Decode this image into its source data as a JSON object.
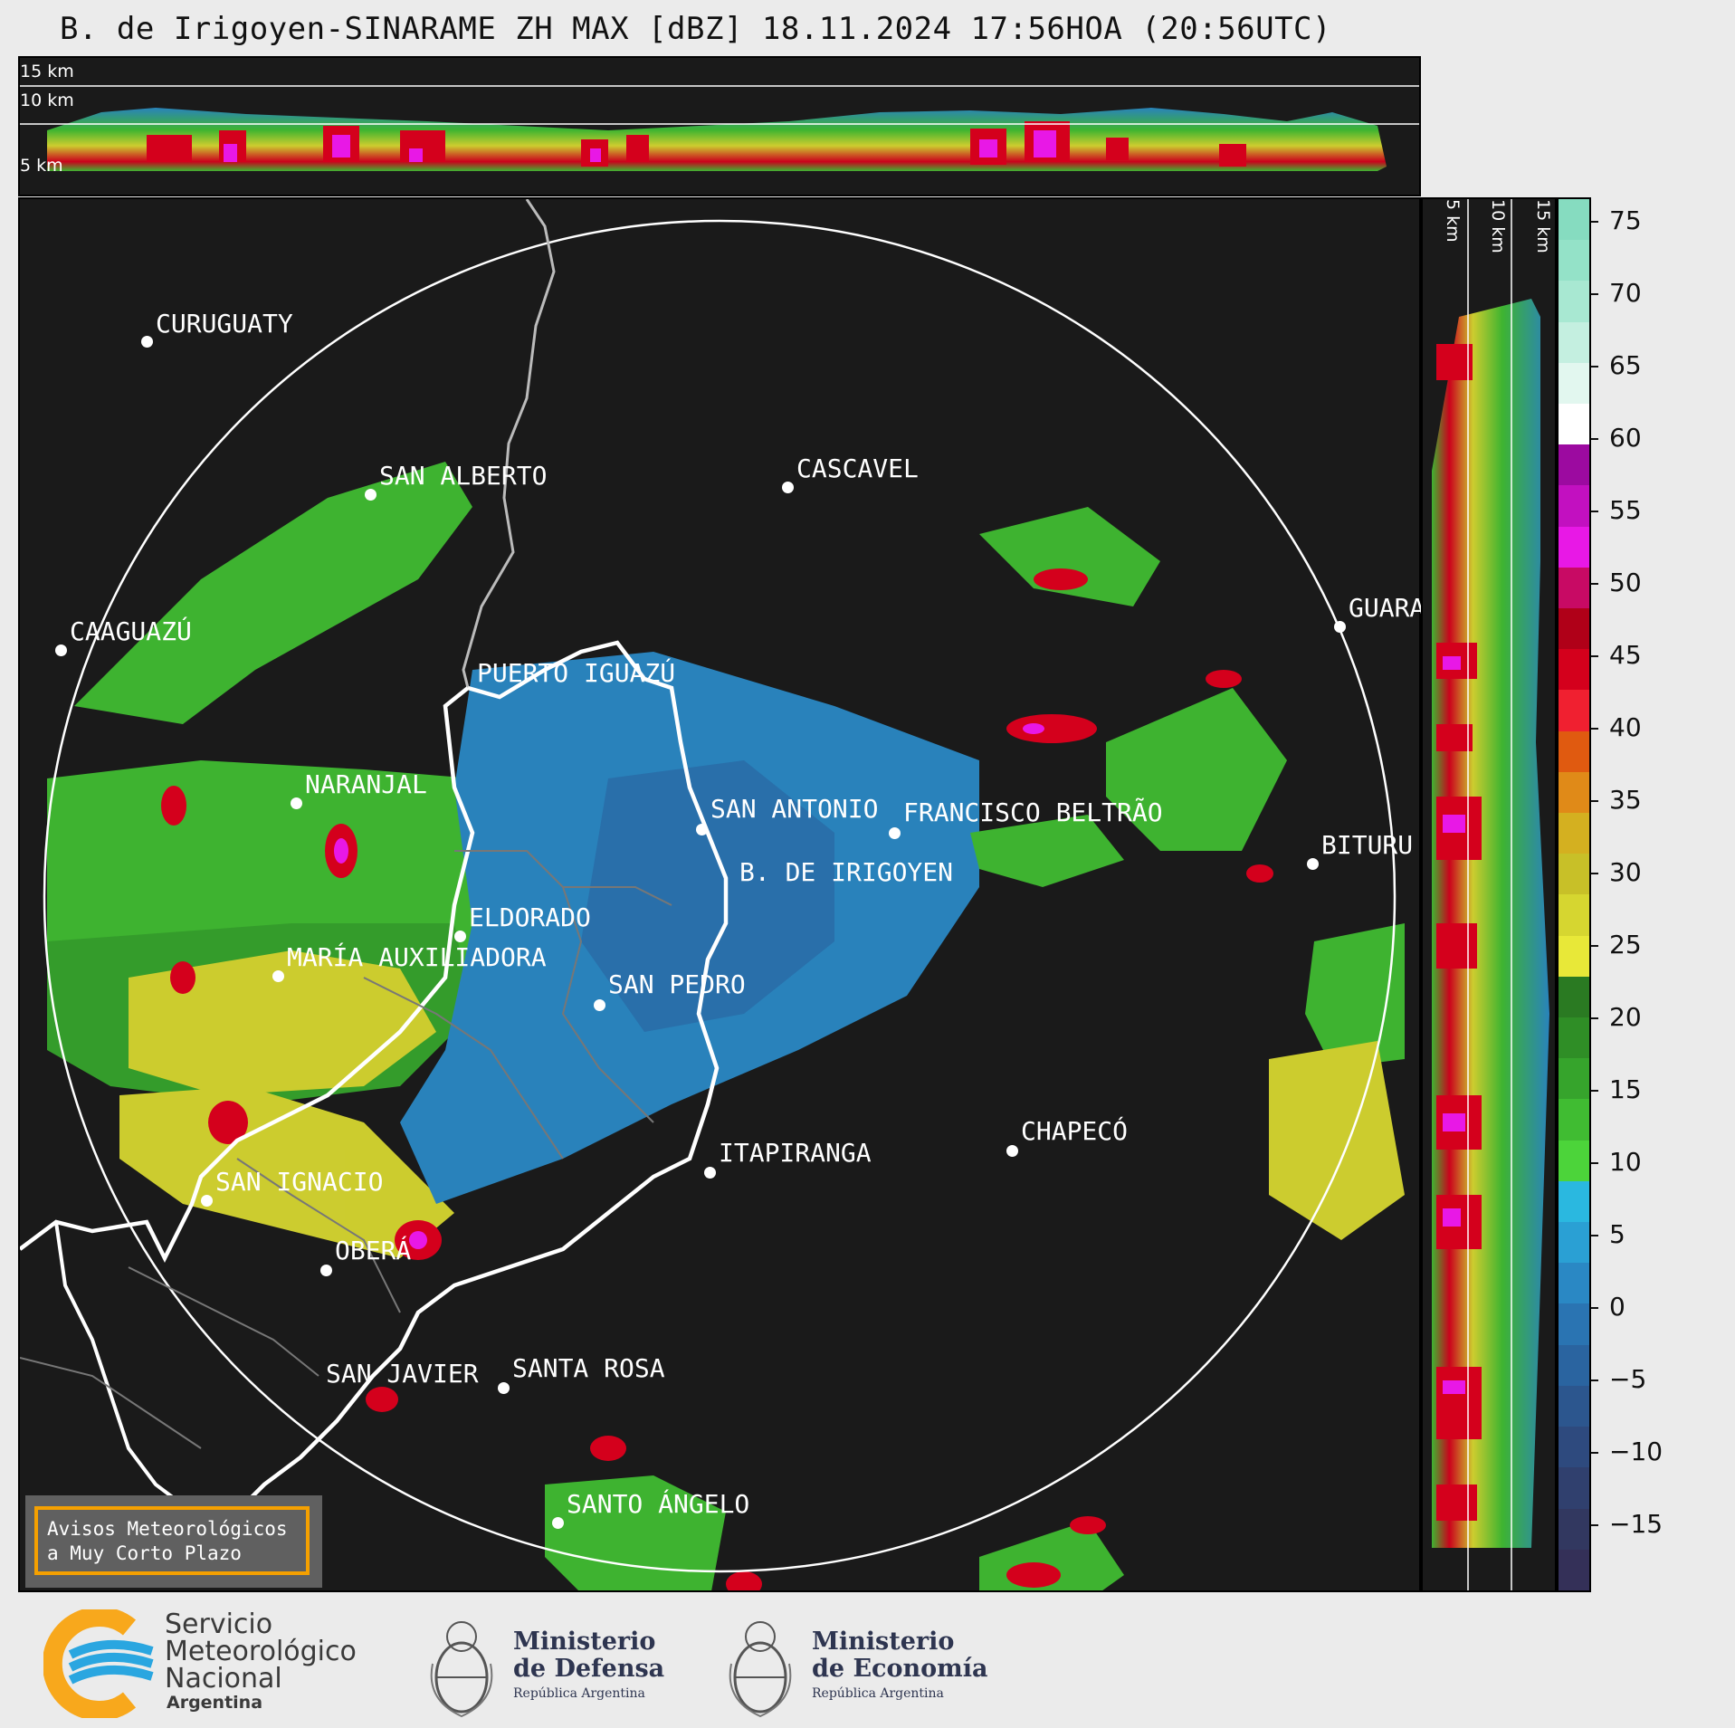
{
  "title": "B. de Irigoyen-SINARAME ZH MAX [dBZ] 18.11.2024 17:56HOA (20:56UTC)",
  "height_labels": {
    "top": [
      "15 km",
      "10 km",
      "5 km"
    ],
    "right": [
      "5 km",
      "10 km",
      "15 km"
    ]
  },
  "cities": [
    {
      "name": "CURUGUATY"
    },
    {
      "name": "SAN ALBERTO"
    },
    {
      "name": "CASCAVEL"
    },
    {
      "name": "CAAGUAZÚ"
    },
    {
      "name": "GUARA"
    },
    {
      "name": "PUERTO IGUAZÚ"
    },
    {
      "name": "NARANJAL"
    },
    {
      "name": "SAN ANTONIO"
    },
    {
      "name": "FRANCISCO BELTRÃO"
    },
    {
      "name": "BITURU"
    },
    {
      "name": "B. DE IRIGOYEN"
    },
    {
      "name": "ELDORADO"
    },
    {
      "name": "MARÍA AUXILIADORA"
    },
    {
      "name": "SAN PEDRO"
    },
    {
      "name": "CHAPECÓ"
    },
    {
      "name": "ITAPIRANGA"
    },
    {
      "name": "SAN IGNACIO"
    },
    {
      "name": "OBERÁ"
    },
    {
      "name": "SAN JAVIER"
    },
    {
      "name": "SANTA ROSA"
    },
    {
      "name": "SANTO ÁNGELO"
    }
  ],
  "colorbar": {
    "ticks": [
      "75",
      "70",
      "65",
      "60",
      "55",
      "50",
      "45",
      "40",
      "35",
      "30",
      "25",
      "20",
      "15",
      "10",
      "5",
      "0",
      "−5",
      "−10",
      "−15"
    ],
    "colors": [
      "#86dcc0",
      "#94e2c8",
      "#a8e8d2",
      "#c4efe0",
      "#e2f7ef",
      "#ffffff",
      "#9c0aa0",
      "#c210c0",
      "#e818e6",
      "#c80a64",
      "#b00018",
      "#d4001c",
      "#f02030",
      "#e05a10",
      "#e08a18",
      "#d4b020",
      "#c8c028",
      "#d6d630",
      "#e8e838",
      "#2a7a22",
      "#2f8e26",
      "#36a42c",
      "#40bc32",
      "#4cd43a",
      "#2ab8e0",
      "#2aa0d4",
      "#2a88c4",
      "#2a74b2",
      "#2a64a0",
      "#2c568e",
      "#2e4a7e",
      "#30406e",
      "#323860",
      "#343058"
    ]
  },
  "warning": {
    "line1": "Avisos Meteorológicos",
    "line2": "a Muy Corto Plazo"
  },
  "logos": {
    "smn": {
      "line1": "Servicio",
      "line2": "Meteorológico",
      "line3": "Nacional",
      "line4": "Argentina",
      "colors": [
        "#f8a81c",
        "#2aa6e0"
      ]
    },
    "defensa": {
      "line1": "Ministerio",
      "line2": "de Defensa",
      "line3": "República Argentina"
    },
    "economia": {
      "line1": "Ministerio",
      "line2": "de Economía",
      "line3": "República Argentina"
    }
  }
}
